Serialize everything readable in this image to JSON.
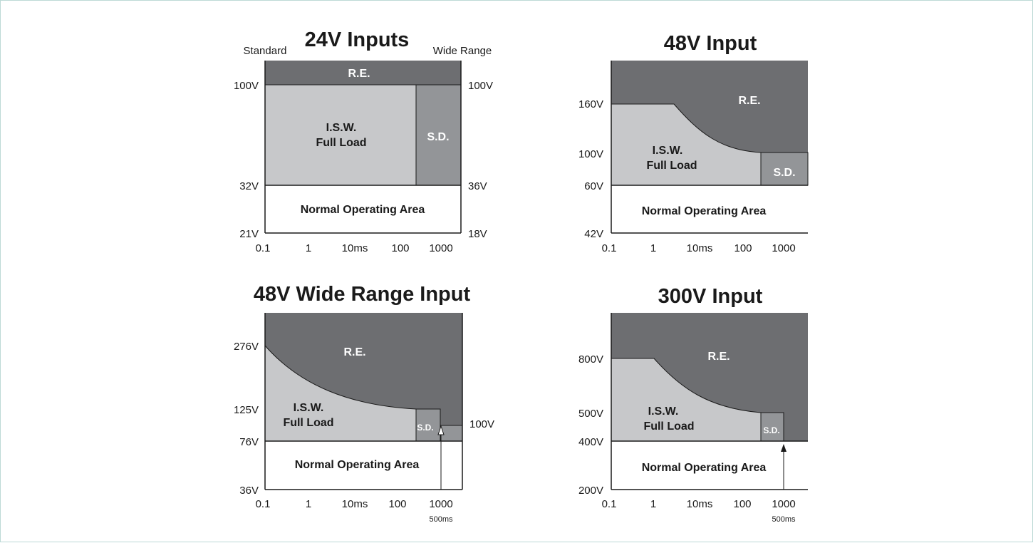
{
  "colors": {
    "re": "#6d6e71",
    "isw": "#c7c8ca",
    "sd": "#939598",
    "normal": "#ffffff",
    "stroke": "#1a1a1a"
  },
  "charts": [
    {
      "title": "24V Inputs",
      "left_label": "Standard",
      "right_label": "Wide Range",
      "left_ticks": [
        "100V",
        "32V",
        "21V"
      ],
      "right_ticks": [
        "100V",
        "36V",
        "18V"
      ],
      "x_ticks": [
        "0.1",
        "1",
        "10ms",
        "100",
        "1000"
      ],
      "zones": {
        "re": "R.E.",
        "isw_line1": "I.S.W.",
        "isw_line2": "Full Load",
        "sd": "S.D.",
        "normal": "Normal Operating Area"
      }
    },
    {
      "title": "48V Input",
      "left_ticks": [
        "160V",
        "100V",
        "60V",
        "42V"
      ],
      "x_ticks": [
        "0.1",
        "1",
        "10ms",
        "100",
        "1000"
      ],
      "zones": {
        "re": "R.E.",
        "isw_line1": "I.S.W.",
        "isw_line2": "Full Load",
        "sd": "S.D.",
        "normal": "Normal Operating Area"
      }
    },
    {
      "title": "48V Wide Range Input",
      "left_ticks": [
        "276V",
        "125V",
        "76V",
        "36V"
      ],
      "right_ticks": [
        "100V"
      ],
      "x_ticks": [
        "0.1",
        "1",
        "10ms",
        "100",
        "1000"
      ],
      "marker": "500ms",
      "zones": {
        "re": "R.E.",
        "isw_line1": "I.S.W.",
        "isw_line2": "Full Load",
        "sd": "S.D.",
        "normal": "Normal Operating Area"
      }
    },
    {
      "title": "300V Input",
      "left_ticks": [
        "800V",
        "500V",
        "400V",
        "200V"
      ],
      "x_ticks": [
        "0.1",
        "1",
        "10ms",
        "100",
        "1000"
      ],
      "marker": "500ms",
      "zones": {
        "re": "R.E.",
        "isw_line1": "I.S.W.",
        "isw_line2": "Full Load",
        "sd": "S.D.",
        "normal": "Normal Operating Area"
      }
    }
  ]
}
